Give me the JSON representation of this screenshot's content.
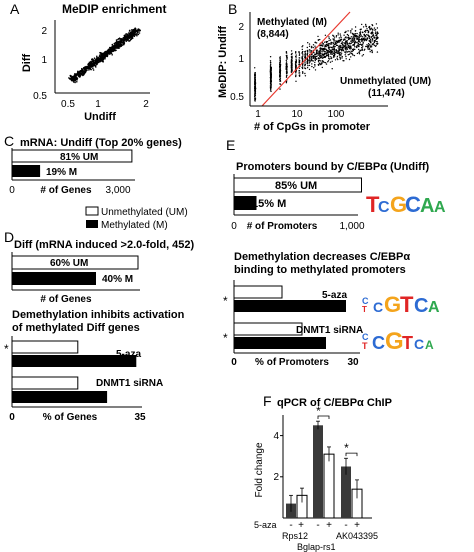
{
  "panels": {
    "A": {
      "letter": "A",
      "title": "MeDIP enrichment",
      "ylabel": "Diff",
      "xlabel": "Undiff",
      "xticks": [
        "0.5",
        "1",
        "2"
      ],
      "yticks": [
        "2",
        "1",
        "0.5"
      ]
    },
    "B": {
      "letter": "B",
      "ylabel": "MeDIP: Undiff",
      "xlabel": "# of CpGs in promoter",
      "xticks": [
        "1",
        "10",
        "100"
      ],
      "yticks": [
        "2",
        "1",
        "0.5"
      ],
      "label_m": "Methylated (M)",
      "count_m": "(8,844)",
      "label_um": "Unmethylated (UM)",
      "count_um": "(11,474)"
    },
    "C": {
      "letter": "C",
      "title": "mRNA: Undiff (Top 20% genes)",
      "xlabel": "# of Genes",
      "xticks": [
        "0",
        "3,000"
      ]
    },
    "D": {
      "letter": "D",
      "title": "Diff (mRNA induced >2.0-fold, 452)",
      "xlabel": "# of Genes",
      "subtitle_line1": "Demethylation inhibits activation",
      "subtitle_line2": "of methylated Diff genes",
      "xlabel2": "% of Genes",
      "xticks2": [
        "0",
        "35"
      ]
    },
    "E": {
      "letter": "E",
      "title": "Promoters bound by C/EBPα (Undiff)",
      "xlabel": "# of Promoters",
      "xticks": [
        "0",
        "1,000"
      ],
      "subtitle_line1": "Demethylation decreases C/EBPα",
      "subtitle_line2": "binding to methylated promoters",
      "xlabel2": "% of Promoters",
      "xticks2": [
        "0",
        "30"
      ]
    },
    "F": {
      "letter": "F",
      "title": "qPCR of C/EBPα ChIP",
      "ylabel": "Fold change",
      "yticks": [
        "2",
        "4"
      ],
      "aza_label": "5-aza",
      "signs": [
        "-",
        "+",
        "-",
        "+",
        "-",
        "+"
      ],
      "genes": [
        "Rps12",
        "Bglap-rs1",
        "AK043395"
      ]
    }
  },
  "legend": {
    "unmethylated": "Unmethylated (UM)",
    "methylated": "Methylated (M)"
  },
  "motif_letters": {
    "top": [
      "T",
      "C",
      "G",
      "C",
      "A",
      "A"
    ],
    "mid": [
      "C",
      "T",
      "C",
      "G",
      "T",
      "C",
      "A"
    ],
    "bot": [
      "C",
      "T",
      "C",
      "G",
      "T",
      "C",
      "A"
    ]
  },
  "colors": {
    "bar_filled": "#000000",
    "bar_open": "#ffffff",
    "trend_line": "#e8392f",
    "f_bar_dark": "#3a3a3a",
    "motif_A": "#2fa84f",
    "motif_C": "#2d6bd3",
    "motif_G": "#f4a41c",
    "motif_T": "#e02525"
  },
  "chart_data": [
    {
      "panel": "A",
      "type": "scatter",
      "title": "MeDIP enrichment",
      "xlabel": "Undiff",
      "ylabel": "Diff",
      "xscale": "log",
      "yscale": "log",
      "xlim": [
        0.4,
        2.5
      ],
      "ylim": [
        0.4,
        2.5
      ],
      "trend": "dense cloud along diagonal y = x"
    },
    {
      "panel": "B",
      "type": "scatter",
      "xlabel": "# of CpGs in promoter",
      "ylabel": "MeDIP: Undiff",
      "xscale": "log",
      "yscale": "log",
      "xlim": [
        1,
        300
      ],
      "ylim": [
        0.4,
        2.5
      ],
      "groups": [
        {
          "name": "Methylated (M)",
          "count": 8844
        },
        {
          "name": "Unmethylated (UM)",
          "count": 11474
        }
      ]
    },
    {
      "panel": "C",
      "type": "bar",
      "title": "mRNA: Undiff (Top 20% genes)",
      "xlabel": "# of Genes",
      "xlim": [
        0,
        3000
      ],
      "bars": [
        {
          "label": "81% UM",
          "value": 81,
          "fill": "open"
        },
        {
          "label": "19% M",
          "value": 19,
          "fill": "filled"
        }
      ]
    },
    {
      "panel": "D-top",
      "type": "bar",
      "title": "Diff (mRNA induced >2.0-fold, 452)",
      "xlabel": "# of Genes",
      "bars": [
        {
          "label": "60% UM",
          "value": 60,
          "fill": "open"
        },
        {
          "label": "40% M",
          "value": 40,
          "fill": "filled"
        }
      ]
    },
    {
      "panel": "D-bottom",
      "type": "bar",
      "xlabel": "% of Genes",
      "xlim": [
        0,
        35
      ],
      "groups": [
        {
          "label": "5-aza",
          "star": "*",
          "open": 18,
          "filled": 34
        },
        {
          "label": "DNMT1 siRNA",
          "star": "",
          "open": 18,
          "filled": 26
        }
      ]
    },
    {
      "panel": "E-top",
      "type": "bar",
      "title": "Promoters bound by C/EBPα (Undiff)",
      "xlabel": "# of Promoters",
      "xlim": [
        0,
        1000
      ],
      "bars": [
        {
          "label": "85% UM",
          "value": 85,
          "fill": "open"
        },
        {
          "label": "15% M",
          "value": 15,
          "fill": "filled"
        }
      ]
    },
    {
      "panel": "E-bottom",
      "type": "bar",
      "xlabel": "% of Promoters",
      "xlim": [
        0,
        30
      ],
      "groups": [
        {
          "label": "5-aza",
          "star": "*",
          "open": 12,
          "filled": 28
        },
        {
          "label": "DNMT1 siRNA",
          "star": "*",
          "open": 17,
          "filled": 23
        }
      ]
    },
    {
      "panel": "F",
      "type": "bar",
      "title": "qPCR of C/EBPα ChIP",
      "ylabel": "Fold change",
      "ylim": [
        0,
        5
      ],
      "categories": [
        "Rps12",
        "Bglap-rs1",
        "AK043395"
      ],
      "series": [
        {
          "values": [
            0.7,
            4.5,
            2.5
          ],
          "errors": [
            0.4,
            0.2,
            0.4
          ]
        },
        {
          "values": [
            1.1,
            3.1,
            1.4
          ],
          "errors": [
            0.35,
            0.35,
            0.45
          ]
        }
      ],
      "significance": [
        "",
        "*",
        "*"
      ]
    }
  ]
}
